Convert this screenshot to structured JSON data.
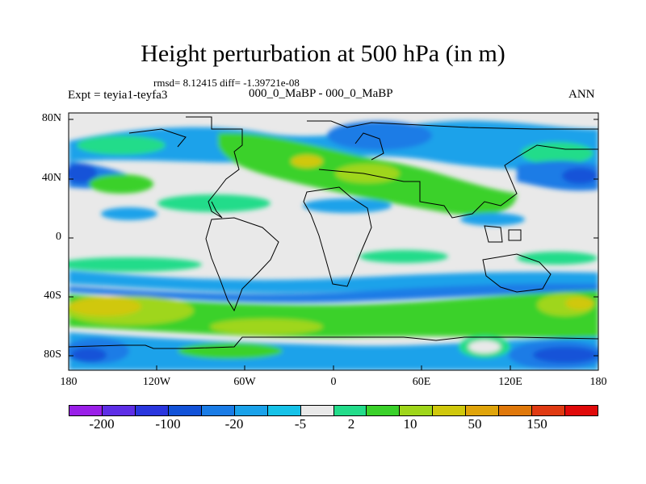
{
  "title": "Height perturbation at 500 hPa (in m)",
  "stats": "rmsd= 8.12415 diff= -1.39721e-08",
  "experiment": "Expt = teyia1-teyfa3",
  "comparison": "000_0_MaBP - 000_0_MaBP",
  "season": "ANN",
  "lat_labels": [
    "80N",
    "40N",
    "0",
    "40S",
    "80S"
  ],
  "lon_labels": [
    "180",
    "120W",
    "60W",
    "0",
    "60E",
    "120E",
    "180"
  ],
  "colorbar": {
    "colors": [
      "#9a1fe8",
      "#5e2ee6",
      "#2a36de",
      "#1252d8",
      "#1a7ce6",
      "#1aa2ea",
      "#16c2e8",
      "#e9e9e9",
      "#23dc8a",
      "#3ad12a",
      "#9fd61a",
      "#d0c80c",
      "#e0a40a",
      "#e0780a",
      "#e03a12",
      "#e00a0a"
    ],
    "labels": [
      "-200",
      "-100",
      "-20",
      "-5",
      "2",
      "10",
      "50",
      "150"
    ]
  }
}
